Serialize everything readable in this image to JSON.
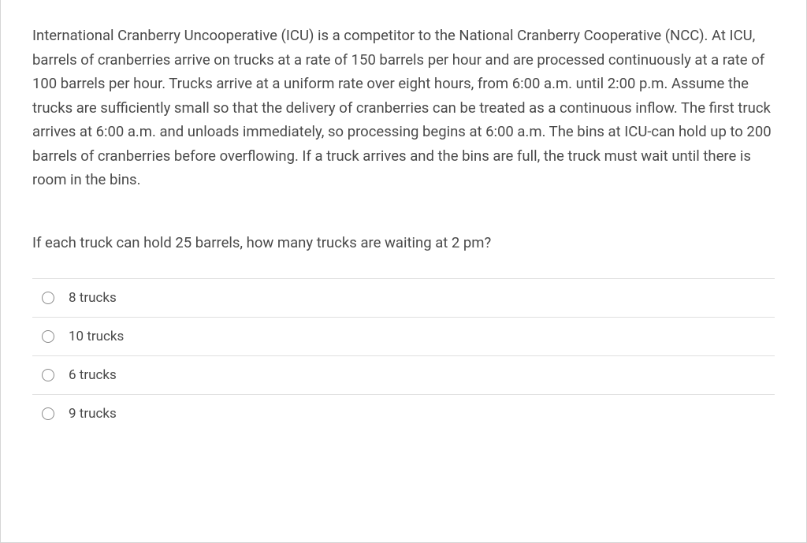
{
  "problem": {
    "description": "International Cranberry Uncooperative (ICU) is a competitor to the National Cranberry Cooperative (NCC). At ICU, barrels of cranberries arrive on trucks at a rate of 150 barrels per hour and are processed continuously at a rate of 100 barrels per hour. Trucks arrive at a uniform rate over eight hours, from 6:00 a.m. until 2:00 p.m. Assume the trucks are sufficiently small so that the delivery of cranberries can be treated as a continuous inflow. The first truck arrives at 6:00 a.m. and unloads immediately, so processing begins at 6:00 a.m. The bins at ICU-can hold up to 200 barrels of cranberries before overflowing. If a truck arrives and the bins are full, the truck must wait until there is room in the bins.",
    "question": "If each truck can hold 25 barrels, how many trucks are waiting at 2 pm?"
  },
  "options": [
    {
      "label": "8 trucks"
    },
    {
      "label": "10 trucks"
    },
    {
      "label": "6 trucks"
    },
    {
      "label": "9 trucks"
    }
  ],
  "styling": {
    "text_color": "#4a4a4a",
    "border_color": "#d5d5d5",
    "divider_color": "#e0e0e0",
    "radio_border_color": "#8a8a8a",
    "background_color": "#ffffff",
    "body_fontsize": 18.5,
    "option_fontsize": 17
  }
}
